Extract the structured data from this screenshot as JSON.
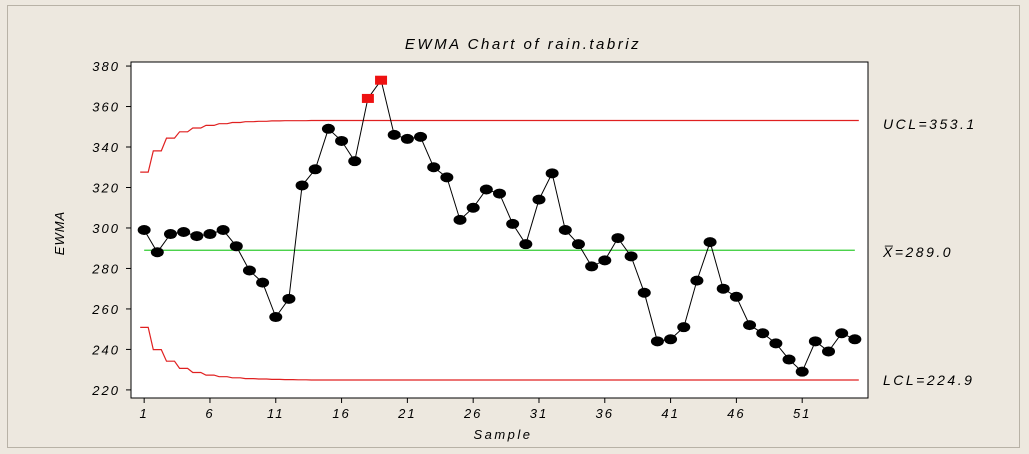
{
  "chart_data": {
    "type": "line",
    "title": "EWMA Chart of rain.tabriz",
    "xlabel": "Sample",
    "ylabel": "EWMA",
    "x_ticks": [
      1,
      6,
      11,
      16,
      21,
      26,
      31,
      36,
      41,
      46,
      51
    ],
    "y_ticks": [
      220,
      240,
      260,
      280,
      300,
      320,
      340,
      360,
      380
    ],
    "xlim": [
      0,
      56
    ],
    "ylim": [
      216,
      382
    ],
    "center_line": {
      "value": 289.0,
      "label": "X̅=289.0",
      "color": "#33cc33"
    },
    "ucl": {
      "value": 353.1,
      "label": "UCL=353.1",
      "color": "#e02020",
      "values": [
        327.6,
        338.1,
        344.4,
        347.5,
        349.4,
        350.7,
        351.5,
        352.1,
        352.5,
        352.7,
        352.9,
        353.0,
        353.0,
        353.1,
        353.1,
        353.1,
        353.1,
        353.1,
        353.1,
        353.1,
        353.1,
        353.1,
        353.1,
        353.1,
        353.1,
        353.1,
        353.1,
        353.1,
        353.1,
        353.1,
        353.1,
        353.1,
        353.1,
        353.1,
        353.1,
        353.1,
        353.1,
        353.1,
        353.1,
        353.1,
        353.1,
        353.1,
        353.1,
        353.1,
        353.1,
        353.1,
        353.1,
        353.1,
        353.1,
        353.1,
        353.1,
        353.1,
        353.1,
        353.1,
        353.1
      ]
    },
    "lcl": {
      "value": 224.9,
      "label": "LCL=224.9",
      "color": "#e02020",
      "values": [
        250.9,
        239.9,
        234.2,
        230.6,
        228.6,
        227.3,
        226.5,
        226.0,
        225.6,
        225.4,
        225.2,
        225.1,
        225.0,
        224.9,
        224.9,
        224.9,
        224.9,
        224.9,
        224.9,
        224.9,
        224.9,
        224.9,
        224.9,
        224.9,
        224.9,
        224.9,
        224.9,
        224.9,
        224.9,
        224.9,
        224.9,
        224.9,
        224.9,
        224.9,
        224.9,
        224.9,
        224.9,
        224.9,
        224.9,
        224.9,
        224.9,
        224.9,
        224.9,
        224.9,
        224.9,
        224.9,
        224.9,
        224.9,
        224.9,
        224.9,
        224.9,
        224.9,
        224.9,
        224.9,
        224.9
      ]
    },
    "series": [
      {
        "line_color": "#000000",
        "point_color": "#000000",
        "out_of_control_color": "#ee1111",
        "x": [
          1,
          2,
          3,
          4,
          5,
          6,
          7,
          8,
          9,
          10,
          11,
          12,
          13,
          14,
          15,
          16,
          17,
          18,
          19,
          20,
          21,
          22,
          23,
          24,
          25,
          26,
          27,
          28,
          29,
          30,
          31,
          32,
          33,
          34,
          35,
          36,
          37,
          38,
          39,
          40,
          41,
          42,
          43,
          44,
          45,
          46,
          47,
          48,
          49,
          50,
          51,
          52,
          53,
          54,
          55
        ],
        "values": [
          299,
          288,
          297,
          298,
          296,
          297,
          299,
          291,
          279,
          273,
          256,
          265,
          321,
          329,
          349,
          343,
          333,
          364,
          373,
          346,
          344,
          345,
          330,
          325,
          304,
          310,
          319,
          317,
          302,
          292,
          314,
          327,
          299,
          292,
          281,
          284,
          295,
          286,
          268,
          244,
          245,
          251,
          274,
          293,
          270,
          266,
          252,
          248,
          243,
          235,
          229,
          244,
          239,
          248,
          245
        ],
        "out_of_control": [
          18,
          19
        ]
      }
    ],
    "grid": false,
    "legend": "none"
  }
}
